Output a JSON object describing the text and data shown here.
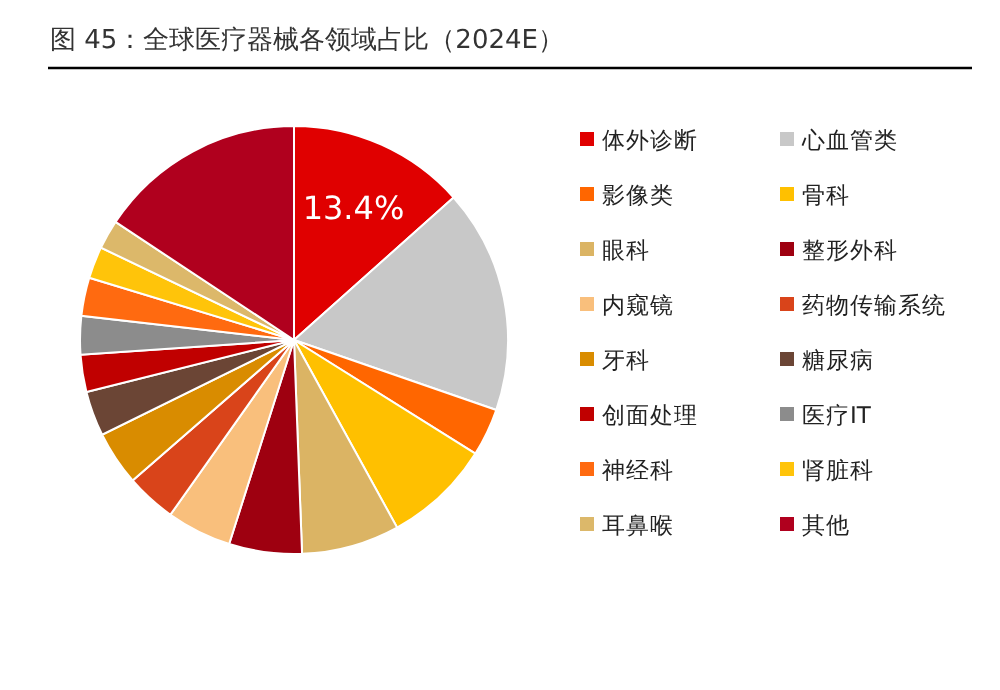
{
  "chart_data": {
    "type": "pie",
    "title": "图 45：全球医疗器械各领域占比（2024E）",
    "categories": [
      "体外诊断",
      "心血管类",
      "影像类",
      "骨科",
      "眼科",
      "整形外科",
      "内窥镜",
      "药物传输系统",
      "牙科",
      "糖尿病",
      "创面处理",
      "医疗IT",
      "神经科",
      "肾脏科",
      "耳鼻喉",
      "其他"
    ],
    "values": [
      13.4,
      16.9,
      3.6,
      8.1,
      7.4,
      5.5,
      4.9,
      3.8,
      4.1,
      3.4,
      2.8,
      2.9,
      2.9,
      2.4,
      2.2,
      15.7
    ],
    "colors": [
      "#e00000",
      "#c8c8c8",
      "#ff6600",
      "#ffc000",
      "#dbb464",
      "#9e0010",
      "#f9bf7c",
      "#d9441a",
      "#d98c00",
      "#6b4535",
      "#c00000",
      "#8c8c8c",
      "#ff6a10",
      "#ffc40a",
      "#dcb86a",
      "#b0001e"
    ],
    "value_labels": [
      "13.4%",
      null,
      null,
      null,
      null,
      null,
      null,
      null,
      null,
      null,
      null,
      null,
      null,
      null,
      null,
      null
    ],
    "legend": "right"
  }
}
